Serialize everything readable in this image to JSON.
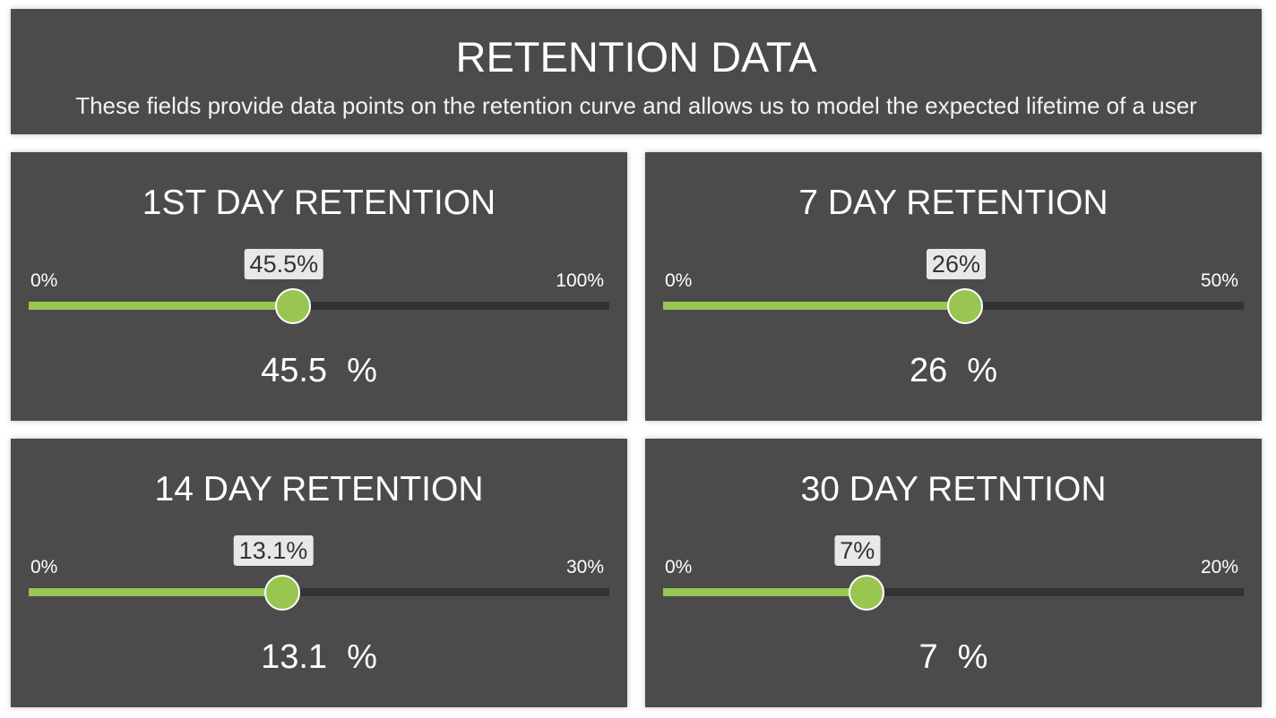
{
  "header": {
    "title": "RETENTION DATA",
    "description": "These fields provide data points on the retention curve and allows us to model the expected lifetime of a user"
  },
  "colors": {
    "panel_bg": "#4b4b4b",
    "slider_fill": "#99c651",
    "slider_track": "#333333",
    "tooltip_bg": "#e8e8e8"
  },
  "sliders": [
    {
      "title": "1ST DAY RETENTION",
      "min_label": "0%",
      "max_label": "100%",
      "min": 0,
      "max": 100,
      "value": 45.5,
      "tooltip": "45.5%",
      "value_text": "45.5",
      "unit": "%"
    },
    {
      "title": "7 DAY RETENTION",
      "min_label": "0%",
      "max_label": "50%",
      "min": 0,
      "max": 50,
      "value": 26,
      "tooltip": "26%",
      "value_text": "26",
      "unit": "%"
    },
    {
      "title": "14 DAY RETENTION",
      "min_label": "0%",
      "max_label": "30%",
      "min": 0,
      "max": 30,
      "value": 13.1,
      "tooltip": "13.1%",
      "value_text": "13.1",
      "unit": "%"
    },
    {
      "title": "30 DAY RETNTION",
      "min_label": "0%",
      "max_label": "20%",
      "min": 0,
      "max": 20,
      "value": 7,
      "tooltip": "7%",
      "value_text": "7",
      "unit": "%"
    }
  ]
}
